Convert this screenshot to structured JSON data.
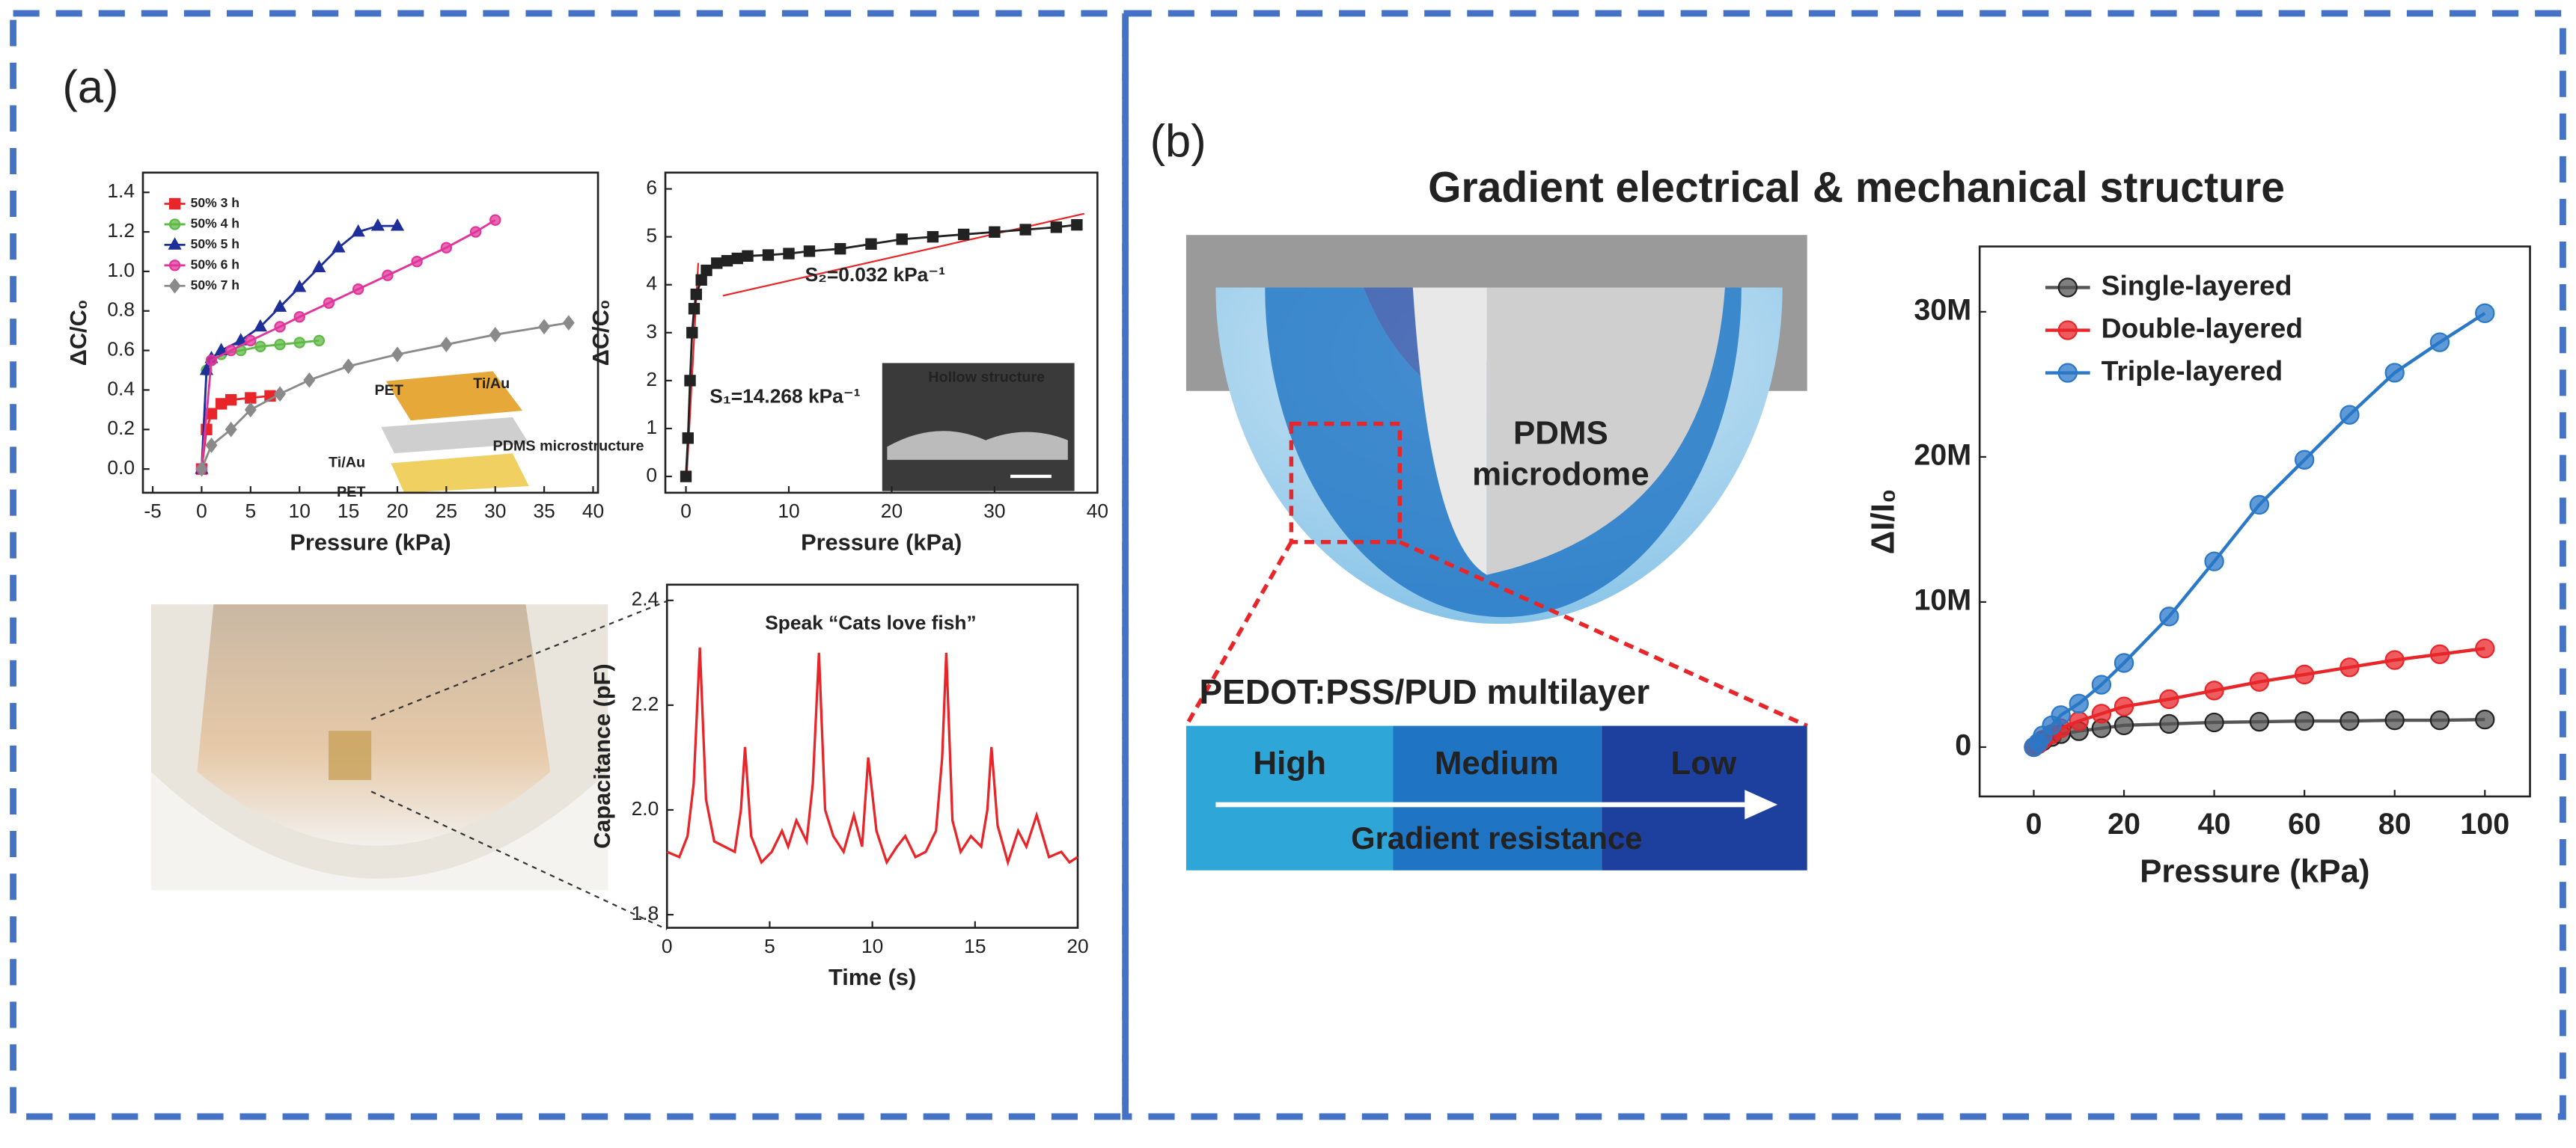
{
  "panel_labels": [
    "(a)",
    "(b)"
  ],
  "diagram": {
    "title": "Gradient electrical & mechanical structure",
    "dome_label": [
      "PDMS",
      "microdome"
    ],
    "layer_label": "PEDOT:PSS/PUD multilayer",
    "levels": [
      "High",
      "Medium",
      "Low"
    ],
    "arrow_label": "Gradient resistance"
  },
  "chart_data": [
    {
      "type": "line",
      "x_label": "Pressure (kPa)",
      "y_label": "ΔC/C₀",
      "legend": "upper left",
      "xlim": [
        -6,
        40.5
      ],
      "xticks": [
        -5,
        0,
        5,
        10,
        15,
        20,
        25,
        30,
        35,
        40
      ],
      "ylim": [
        -0.12,
        1.5
      ],
      "yticks": [
        {
          "value": 0,
          "label": "0.0"
        },
        0.2,
        0.4,
        0.6,
        0.8,
        {
          "value": 1,
          "label": "1.0"
        },
        1.2,
        1.4
      ],
      "annotations": [
        "PET",
        "Ti/Au",
        "PDMS microstructure",
        "Ti/Au",
        "PET"
      ],
      "series": [
        {
          "name": "50% 3 h",
          "color": "#e8262a",
          "marker": "square",
          "x": [
            0,
            0.5,
            1,
            2,
            3,
            5,
            7
          ],
          "values": [
            0,
            0.2,
            0.28,
            0.33,
            0.35,
            0.36,
            0.37
          ]
        },
        {
          "name": "50% 4 h",
          "color": "#5fb946",
          "marker": "circle",
          "x": [
            0,
            0.5,
            1,
            2,
            4,
            6,
            8,
            10,
            12
          ],
          "values": [
            0,
            0.5,
            0.55,
            0.58,
            0.6,
            0.62,
            0.63,
            0.64,
            0.65
          ]
        },
        {
          "name": "50% 5 h",
          "color": "#1f2f9a",
          "marker": "triangle",
          "x": [
            0,
            0.5,
            1,
            2,
            4,
            6,
            8,
            10,
            12,
            14,
            16,
            18,
            20
          ],
          "values": [
            0,
            0.5,
            0.56,
            0.6,
            0.65,
            0.72,
            0.82,
            0.92,
            1.02,
            1.12,
            1.2,
            1.23,
            1.23
          ]
        },
        {
          "name": "50% 6 h",
          "color": "#e0359a",
          "marker": "circle",
          "x": [
            0,
            1,
            3,
            5,
            8,
            10,
            13,
            16,
            19,
            22,
            25,
            28,
            30
          ],
          "values": [
            0,
            0.55,
            0.6,
            0.65,
            0.72,
            0.77,
            0.84,
            0.91,
            0.98,
            1.05,
            1.12,
            1.2,
            1.26
          ]
        },
        {
          "name": "50% 7 h",
          "color": "#8a8a8a",
          "marker": "diamond",
          "x": [
            0,
            1,
            3,
            5,
            8,
            11,
            15,
            20,
            25,
            30,
            35,
            37.5
          ],
          "values": [
            0,
            0.12,
            0.2,
            0.3,
            0.38,
            0.45,
            0.52,
            0.58,
            0.63,
            0.68,
            0.72,
            0.74
          ]
        }
      ]
    },
    {
      "type": "line",
      "x_label": "Pressure (kPa)",
      "y_label": "ΔC/C₀",
      "xlim": [
        -2,
        40
      ],
      "xticks": [
        0,
        10,
        20,
        30,
        40
      ],
      "ylim": [
        -0.34,
        6.34
      ],
      "yticks": [
        0,
        1,
        2,
        3,
        4,
        5,
        6
      ],
      "annotations": [
        "S₂=0.032 kPa⁻¹",
        "S₁=14.268 kPa⁻¹",
        "Hollow structure"
      ],
      "x": [
        0,
        0.2,
        0.4,
        0.6,
        0.8,
        1,
        1.5,
        2,
        3,
        4,
        5,
        6,
        8,
        10,
        12,
        15,
        18,
        21,
        24,
        27,
        30,
        33,
        36,
        38
      ],
      "series": [
        {
          "color": "#222222",
          "marker": "square",
          "values": [
            0,
            0.8,
            2,
            3,
            3.5,
            3.8,
            4.1,
            4.3,
            4.45,
            4.5,
            4.55,
            4.6,
            4.62,
            4.65,
            4.7,
            4.75,
            4.85,
            4.95,
            5.0,
            5.05,
            5.1,
            5.15,
            5.2,
            5.25
          ]
        }
      ]
    },
    {
      "type": "line",
      "title": "Speak “Cats love fish”",
      "x_label": "Time (s)",
      "y_label": "Capacitance (pF)",
      "xlim": [
        0,
        20
      ],
      "xticks": [
        0,
        5,
        10,
        15,
        20
      ],
      "ylim": [
        1.775,
        2.43
      ],
      "yticks": [
        1.8,
        {
          "value": 2,
          "label": "2.0"
        },
        2.2,
        2.4
      ],
      "x": [
        0,
        0.6,
        1.0,
        1.3,
        1.6,
        1.9,
        2.3,
        2.8,
        3.3,
        3.6,
        3.8,
        4.1,
        4.6,
        5.1,
        5.6,
        5.9,
        6.3,
        6.8,
        7.1,
        7.4,
        7.7,
        8.1,
        8.6,
        9.1,
        9.5,
        9.8,
        10.2,
        10.7,
        11.2,
        11.6,
        12.1,
        12.6,
        13.1,
        13.4,
        13.6,
        13.9,
        14.3,
        14.8,
        15.3,
        15.6,
        15.8,
        16.1,
        16.6,
        17.1,
        17.5,
        18.0,
        18.6,
        19.2,
        19.6,
        20
      ],
      "series": [
        {
          "color": "#e8262a",
          "values": [
            1.92,
            1.91,
            1.95,
            2.05,
            2.31,
            2.02,
            1.94,
            1.93,
            1.92,
            2.0,
            2.12,
            1.95,
            1.9,
            1.92,
            1.96,
            1.93,
            1.98,
            1.94,
            2.05,
            2.3,
            2.0,
            1.95,
            1.92,
            1.99,
            1.93,
            2.1,
            1.96,
            1.9,
            1.93,
            1.95,
            1.91,
            1.92,
            1.96,
            2.1,
            2.3,
            1.98,
            1.92,
            1.95,
            1.93,
            2.0,
            2.12,
            1.97,
            1.9,
            1.96,
            1.93,
            1.99,
            1.91,
            1.92,
            1.9,
            1.91
          ]
        }
      ]
    },
    {
      "type": "line",
      "x_label": "Pressure (kPa)",
      "y_label": "ΔI/I₀",
      "legend": "upper left",
      "xlim": [
        -12,
        110
      ],
      "xticks": [
        0,
        20,
        40,
        60,
        80,
        100
      ],
      "ylim": [
        -3400000,
        34500000
      ],
      "yticks": [
        0,
        {
          "value": 10000000,
          "label": "10M"
        },
        {
          "value": 20000000,
          "label": "20M"
        },
        {
          "value": 30000000,
          "label": "30M"
        }
      ],
      "x": [
        0,
        1,
        2,
        4,
        6,
        10,
        15,
        20,
        30,
        40,
        50,
        60,
        70,
        80,
        90,
        100
      ],
      "series": [
        {
          "name": "Single-layered",
          "color": "#555555",
          "marker": "circle",
          "values": [
            0,
            200000,
            400000,
            700000,
            900000,
            1100000,
            1300000,
            1500000,
            1600000,
            1700000,
            1750000,
            1800000,
            1800000,
            1850000,
            1850000,
            1900000
          ]
        },
        {
          "name": "Double-layered",
          "color": "#e8262a",
          "marker": "circle",
          "values": [
            0,
            200000,
            500000,
            900000,
            1300000,
            1800000,
            2300000,
            2800000,
            3300000,
            3900000,
            4500000,
            5000000,
            5500000,
            6000000,
            6400000,
            6800000
          ]
        },
        {
          "name": "Triple-layered",
          "color": "#2a78c8",
          "marker": "circle",
          "values": [
            0,
            300000,
            800000,
            1500000,
            2200000,
            3000000,
            4300000,
            5800000,
            9000000,
            12800000,
            16700000,
            19800000,
            22900000,
            25800000,
            27900000,
            29900000
          ]
        }
      ]
    }
  ]
}
